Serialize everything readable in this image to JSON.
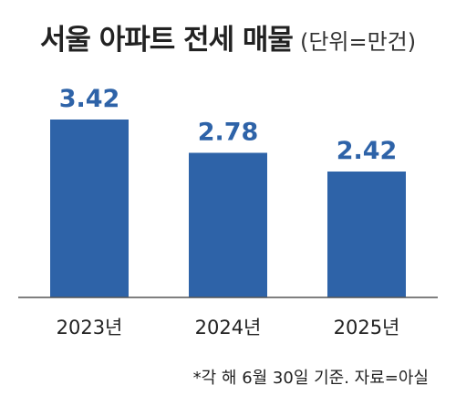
{
  "header": {
    "title": "서울 아파트 전세 매물",
    "unit": "(단위=만건)"
  },
  "footnote": "*각 해 6월 30일 기준. 자료=아실",
  "colors": {
    "bar": "#2e63a8",
    "value_label": "#2e63a8",
    "baseline": "#555555",
    "category_label": "#222222"
  },
  "chart_data": {
    "type": "bar",
    "title": "서울 아파트 전세 매물",
    "subtitle": "(단위=만건)",
    "categories": [
      "2023년",
      "2024년",
      "2025년"
    ],
    "values": [
      3.42,
      2.78,
      2.42
    ],
    "value_labels": [
      "3.42",
      "2.78",
      "2.42"
    ],
    "xlabel": "",
    "ylabel": "",
    "ylim": [
      0,
      3.42
    ],
    "grid": false,
    "legend": "none"
  }
}
